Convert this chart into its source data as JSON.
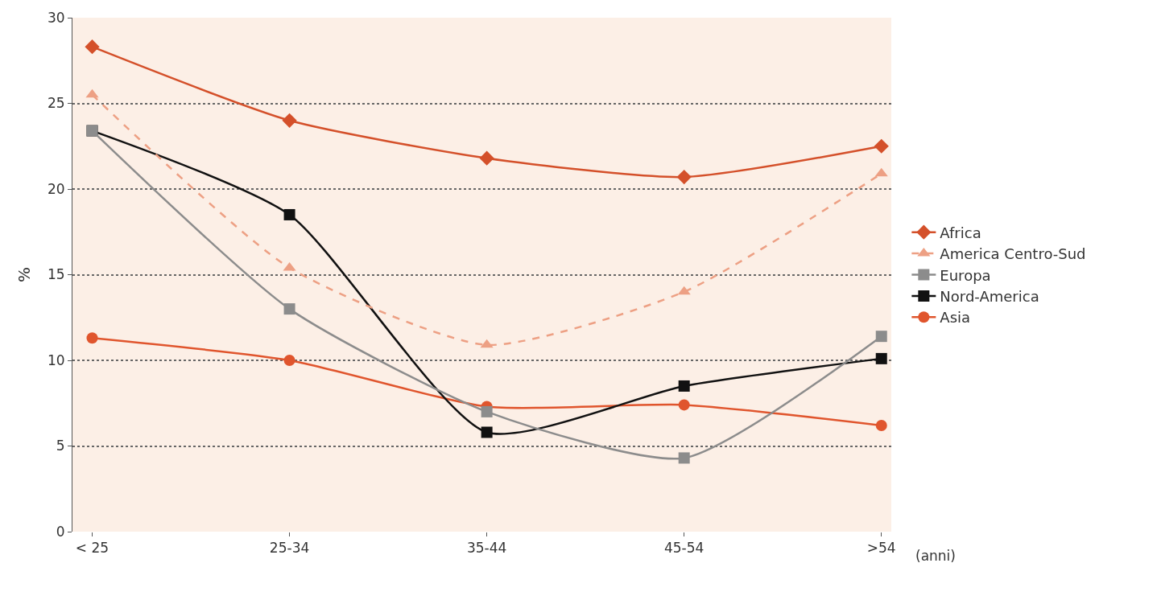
{
  "chart_data": {
    "type": "line",
    "ylabel": "%",
    "xlabel": "(anni)",
    "categories": [
      "< 25",
      "25-34",
      "35-44",
      "45-54",
      ">54"
    ],
    "series": [
      {
        "name": "Africa",
        "color": "#d4502a",
        "marker": "diamond",
        "line_style": "solid",
        "values": [
          28.3,
          24.0,
          21.8,
          20.7,
          22.5
        ]
      },
      {
        "name": "America Centro-Sud",
        "color": "#eda084",
        "marker": "triangle",
        "line_style": "dashed",
        "values": [
          25.5,
          15.4,
          10.9,
          14.0,
          20.9
        ]
      },
      {
        "name": "Europa",
        "color": "#8c8c8c",
        "marker": "square",
        "line_style": "solid",
        "values": [
          23.4,
          13.0,
          7.0,
          4.3,
          11.4
        ]
      },
      {
        "name": "Nord-America",
        "color": "#111111",
        "marker": "square",
        "line_style": "solid",
        "values": [
          23.4,
          18.5,
          5.8,
          8.5,
          10.1
        ]
      },
      {
        "name": "Asia",
        "color": "#e0552d",
        "marker": "circle",
        "line_style": "solid",
        "values": [
          11.3,
          10.0,
          7.3,
          7.4,
          6.2
        ]
      }
    ],
    "ylim": [
      0,
      30
    ],
    "yticks": [
      0,
      5,
      10,
      15,
      20,
      25,
      30
    ],
    "grid": "y",
    "legend": "right"
  }
}
